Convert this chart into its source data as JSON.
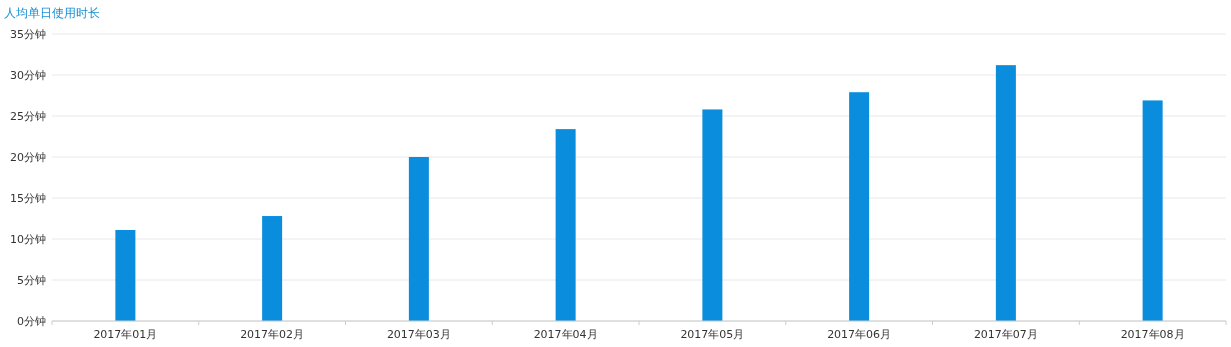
{
  "chart_data": {
    "type": "bar",
    "title": "人均单日使用时长",
    "categories": [
      "2017年01月",
      "2017年02月",
      "2017年03月",
      "2017年04月",
      "2017年05月",
      "2017年06月",
      "2017年07月",
      "2017年08月"
    ],
    "series": [
      {
        "color": "#0a8ddd",
        "values": [
          11.1,
          12.8,
          20.0,
          23.4,
          25.8,
          27.9,
          31.2,
          26.9
        ]
      }
    ],
    "ylim": [
      0,
      35
    ],
    "yticks": [
      {
        "value": 0,
        "label": "0分钟"
      },
      {
        "value": 5,
        "label": "5分钟"
      },
      {
        "value": 10,
        "label": "10分钟"
      },
      {
        "value": 15,
        "label": "15分钟"
      },
      {
        "value": 20,
        "label": "20分钟"
      },
      {
        "value": 25,
        "label": "25分钟"
      },
      {
        "value": 30,
        "label": "30分钟"
      },
      {
        "value": 35,
        "label": "35分钟"
      }
    ],
    "grid": "y"
  }
}
